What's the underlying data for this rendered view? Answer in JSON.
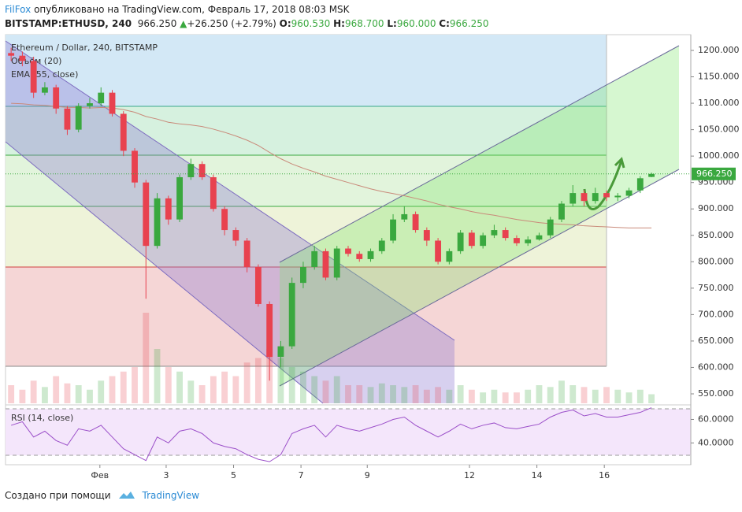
{
  "header": {
    "author": "FilFox",
    "published": "опубликовано на TradingView.com, Февраль 17, 2018 08:03 MSK",
    "symbol": "BITSTAMP:ETHUSD, 240",
    "price": "966.250",
    "change": "+26.250 (+2.79%)",
    "ohlc": [
      {
        "label": "O:",
        "value": "960.530"
      },
      {
        "label": "H:",
        "value": "968.700"
      },
      {
        "label": "L:",
        "value": "960.000"
      },
      {
        "label": "C:",
        "value": "966.250"
      }
    ]
  },
  "chart_data": {
    "type": "candlestick",
    "legend": [
      "Ethereum / Dollar, 240, BITSTAMP",
      "Объём (20)",
      "EMA (55, close)"
    ],
    "up_color": "#3aa83f",
    "down_color": "#e8424f",
    "xlim": [
      -0.5,
      60.5
    ],
    "xticks": [
      {
        "value": 7.9,
        "label": "Фев"
      },
      {
        "value": 13.8,
        "label": "3"
      },
      {
        "value": 19.8,
        "label": "5"
      },
      {
        "value": 25.8,
        "label": "7"
      },
      {
        "value": 31.7,
        "label": "9"
      },
      {
        "value": 40.8,
        "label": "12"
      },
      {
        "value": 46.8,
        "label": "14"
      },
      {
        "value": 52.8,
        "label": "16"
      }
    ],
    "ylim": [
      532.1,
      1229.8
    ],
    "yticks": [
      {
        "value": 550,
        "label": "550.000"
      },
      {
        "value": 600,
        "label": "600.000"
      },
      {
        "value": 650,
        "label": "650.000"
      },
      {
        "value": 700,
        "label": "700.000"
      },
      {
        "value": 750,
        "label": "750.000"
      },
      {
        "value": 800,
        "label": "800.000"
      },
      {
        "value": 850,
        "label": "850.000"
      },
      {
        "value": 900,
        "label": "900.000"
      },
      {
        "value": 950,
        "label": "950.000"
      },
      {
        "value": 1000,
        "label": "1000.000"
      },
      {
        "value": 1050,
        "label": "1050.000"
      },
      {
        "value": 1100,
        "label": "1100.000"
      },
      {
        "value": 1150,
        "label": "1150.000"
      },
      {
        "value": 1200,
        "label": "1200.000"
      }
    ],
    "last_price": {
      "value": 966.25,
      "label": "966.250"
    },
    "open": [
      1195,
      1190,
      1180,
      1120,
      1130,
      1090,
      1050,
      1095,
      1100,
      1120,
      1080,
      1010,
      950,
      830,
      920,
      880,
      960,
      985,
      960,
      900,
      860,
      840,
      790,
      720,
      620,
      640,
      760,
      790,
      820,
      770,
      825,
      815,
      805,
      820,
      840,
      880,
      890,
      860,
      840,
      800,
      820,
      855,
      830,
      850,
      860,
      845,
      835,
      842,
      850,
      880,
      910,
      930,
      915,
      930,
      922,
      925,
      935,
      960.53
    ],
    "high": [
      1205,
      1198,
      1188,
      1140,
      1135,
      1095,
      1100,
      1110,
      1130,
      1125,
      1085,
      1015,
      955,
      930,
      925,
      965,
      995,
      990,
      965,
      905,
      865,
      845,
      795,
      725,
      650,
      770,
      800,
      830,
      825,
      830,
      830,
      820,
      825,
      845,
      890,
      905,
      895,
      865,
      845,
      825,
      860,
      860,
      855,
      870,
      865,
      850,
      848,
      855,
      885,
      915,
      945,
      935,
      940,
      935,
      930,
      940,
      962,
      968.7
    ],
    "low": [
      1180,
      1170,
      1110,
      1115,
      1080,
      1040,
      1045,
      1090,
      1095,
      1075,
      1000,
      940,
      730,
      825,
      870,
      875,
      955,
      955,
      895,
      850,
      830,
      780,
      715,
      575,
      600,
      635,
      750,
      785,
      765,
      765,
      810,
      800,
      800,
      815,
      835,
      875,
      855,
      830,
      795,
      795,
      815,
      825,
      825,
      845,
      840,
      830,
      830,
      840,
      845,
      875,
      905,
      905,
      910,
      915,
      915,
      920,
      930,
      960
    ],
    "close": [
      1190,
      1180,
      1120,
      1130,
      1090,
      1050,
      1095,
      1100,
      1120,
      1080,
      1010,
      950,
      830,
      920,
      880,
      960,
      985,
      960,
      900,
      860,
      840,
      790,
      720,
      620,
      640,
      760,
      790,
      820,
      770,
      825,
      815,
      805,
      820,
      840,
      880,
      890,
      860,
      840,
      800,
      820,
      855,
      830,
      850,
      860,
      845,
      835,
      842,
      850,
      880,
      910,
      930,
      915,
      930,
      922,
      925,
      935,
      958,
      966.25
    ],
    "ema": {
      "color": "#c98a7a",
      "values": [
        1100,
        1099,
        1097,
        1096,
        1094,
        1092,
        1092,
        1091,
        1092,
        1091,
        1088,
        1083,
        1075,
        1070,
        1064,
        1061,
        1059,
        1056,
        1051,
        1045,
        1038,
        1030,
        1020,
        1007,
        995,
        985,
        977,
        970,
        962,
        956,
        950,
        944,
        938,
        933,
        929,
        925,
        920,
        915,
        909,
        904,
        900,
        895,
        891,
        888,
        884,
        880,
        877,
        874,
        872,
        871,
        870,
        868,
        867,
        866,
        865,
        864,
        864,
        864
      ]
    },
    "volume": {
      "ylim": [
        0,
        100
      ],
      "values": [
        20,
        15,
        25,
        18,
        30,
        22,
        20,
        15,
        25,
        30,
        35,
        40,
        100,
        60,
        40,
        35,
        25,
        20,
        30,
        35,
        30,
        45,
        50,
        60,
        50,
        40,
        35,
        30,
        25,
        30,
        20,
        20,
        18,
        22,
        20,
        18,
        20,
        15,
        18,
        15,
        20,
        15,
        12,
        15,
        12,
        12,
        15,
        20,
        18,
        25,
        20,
        18,
        15,
        18,
        15,
        12,
        15,
        10
      ]
    },
    "rsi": {
      "name": "RSI (14, close)",
      "color": "#9b4fc9",
      "ylim": [
        21.4,
        72.4
      ],
      "yticks": [
        {
          "value": 40,
          "label": "40.0000"
        },
        {
          "value": 60,
          "label": "60.0000"
        }
      ],
      "values": [
        55,
        58,
        45,
        50,
        42,
        38,
        52,
        50,
        55,
        45,
        35,
        30,
        25,
        45,
        40,
        50,
        52,
        48,
        40,
        37,
        35,
        30,
        26,
        24,
        30,
        48,
        52,
        55,
        45,
        55,
        52,
        50,
        53,
        56,
        60,
        62,
        55,
        50,
        45,
        50,
        56,
        52,
        55,
        57,
        53,
        52,
        54,
        56,
        62,
        66,
        68,
        63,
        65,
        62,
        62,
        64,
        66,
        70
      ]
    }
  },
  "footer": {
    "made_with": "Создано при помощи",
    "brand": "TradingView"
  }
}
